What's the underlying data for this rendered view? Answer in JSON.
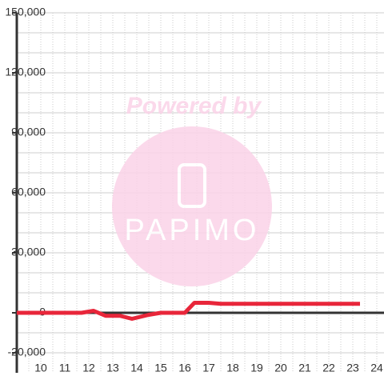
{
  "chart_data": {
    "type": "line",
    "watermark": {
      "top": "Powered by",
      "brand": "PAPIMO"
    },
    "x": [
      9,
      11.7,
      12.2,
      12.7,
      13.3,
      13.8,
      14.5,
      15,
      16,
      16.4,
      17,
      17.5,
      23.3
    ],
    "series": [
      {
        "color": "#e8263a",
        "values": [
          0,
          0,
          1000,
          -1500,
          -1500,
          -3000,
          -1000,
          0,
          0,
          5000,
          5000,
          4500,
          4500
        ]
      }
    ],
    "xlim": [
      9,
      24.3
    ],
    "xticks": [
      10,
      11,
      12,
      13,
      14,
      15,
      16,
      17,
      18,
      19,
      20,
      21,
      22,
      23,
      24
    ],
    "xgrid": [
      9.5,
      10,
      10.5,
      11,
      11.5,
      12,
      12.5,
      13,
      13.5,
      14,
      14.5,
      15,
      15.5,
      16,
      16.5,
      17,
      17.5,
      18,
      18.5,
      19,
      19.5,
      20,
      20.5,
      21,
      21.5,
      22,
      22.5,
      23,
      23.5,
      24
    ],
    "ylim": [
      -30000,
      150000
    ],
    "yticks": [
      {
        "value": 150000,
        "label": "150,000"
      },
      {
        "value": 120000,
        "label": "120,000"
      },
      {
        "value": 90000,
        "label": "90,000"
      },
      {
        "value": 60000,
        "label": "60,000"
      },
      {
        "value": 30000,
        "label": "30,000"
      },
      0,
      {
        "value": -20000,
        "label": "-20,000"
      }
    ],
    "ygrid": [
      150000,
      140000,
      130000,
      120000,
      110000,
      100000,
      90000,
      80000,
      70000,
      60000,
      50000,
      40000,
      30000,
      20000,
      10000,
      -10000,
      -20000
    ],
    "grid": true
  }
}
